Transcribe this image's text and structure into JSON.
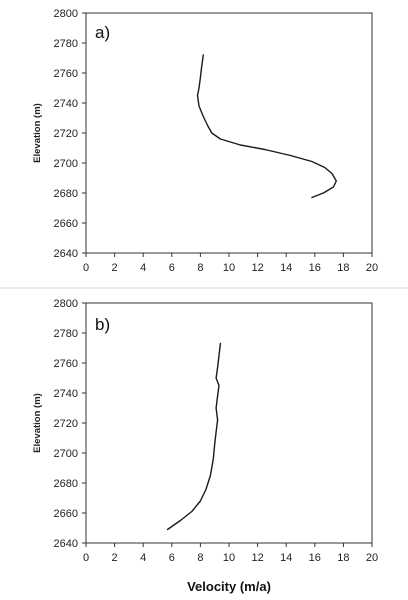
{
  "chart_data": [
    {
      "type": "line",
      "panel_label": "a)",
      "xlabel": "",
      "ylabel": "Elevation (m)",
      "xlim": [
        0,
        20
      ],
      "ylim": [
        2640,
        2800
      ],
      "x_ticks": [
        0,
        2,
        4,
        6,
        8,
        10,
        12,
        14,
        16,
        18,
        20
      ],
      "y_ticks": [
        2640,
        2660,
        2680,
        2700,
        2720,
        2740,
        2760,
        2780,
        2800
      ],
      "grid": false,
      "series": [
        {
          "x": [
            8.2,
            8.1,
            8.0,
            7.9,
            7.8,
            7.9,
            8.2,
            8.5,
            8.8,
            9.4,
            10.8,
            12.5,
            14.3,
            15.8,
            16.7,
            17.2,
            17.5,
            17.3,
            16.6,
            15.8
          ],
          "y": [
            2772,
            2765,
            2757,
            2750,
            2745,
            2738,
            2731,
            2725,
            2720,
            2716,
            2712,
            2709,
            2705,
            2701,
            2697,
            2693,
            2688,
            2684,
            2680,
            2677
          ]
        }
      ]
    },
    {
      "type": "line",
      "panel_label": "b)",
      "xlabel": "Velocity (m/a)",
      "ylabel": "Elevation (m)",
      "xlim": [
        0,
        20
      ],
      "ylim": [
        2640,
        2800
      ],
      "x_ticks": [
        0,
        2,
        4,
        6,
        8,
        10,
        12,
        14,
        16,
        18,
        20
      ],
      "y_ticks": [
        2640,
        2660,
        2680,
        2700,
        2720,
        2740,
        2760,
        2780,
        2800
      ],
      "grid": false,
      "series": [
        {
          "x": [
            9.4,
            9.3,
            9.2,
            9.1,
            9.3,
            9.2,
            9.1,
            9.2,
            9.1,
            9.0,
            8.9,
            8.7,
            8.4,
            8.0,
            7.4,
            6.6,
            5.7
          ],
          "y": [
            2773,
            2765,
            2757,
            2750,
            2745,
            2738,
            2730,
            2722,
            2714,
            2706,
            2696,
            2685,
            2676,
            2668,
            2661,
            2655,
            2649
          ]
        }
      ]
    }
  ]
}
